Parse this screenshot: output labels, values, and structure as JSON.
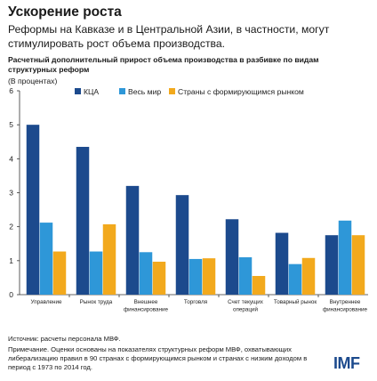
{
  "header": {
    "title": "Ускорение роста",
    "subtitle": "Реформы на Кавказе и в Центральной Азии, в частности, могут стимулировать рост объема производства."
  },
  "chart_data": {
    "type": "bar",
    "title": "Расчетный дополнительный прирост объема производства в разбивке по видам структурных реформ",
    "unit": "(В процентах)",
    "xlabel": "",
    "ylabel": "",
    "ylim": [
      0,
      6
    ],
    "yticks": [
      0,
      1,
      2,
      3,
      4,
      5,
      6
    ],
    "grid": false,
    "legend_position": "top",
    "categories": [
      [
        "Управление"
      ],
      [
        "Рынок труда"
      ],
      [
        "Внешнее",
        "финансирование"
      ],
      [
        "Торговля"
      ],
      [
        "Счет текущих",
        "операций"
      ],
      [
        "Товарный рынок"
      ],
      [
        "Внутреннее",
        "финансирование"
      ]
    ],
    "series": [
      {
        "name": "КЦА",
        "color": "#1c4a8d",
        "values": [
          5.0,
          4.35,
          3.2,
          2.93,
          2.22,
          1.82,
          1.75
        ]
      },
      {
        "name": "Весь мир",
        "color": "#2e97d8",
        "values": [
          2.12,
          1.27,
          1.25,
          1.05,
          1.1,
          0.9,
          2.18
        ]
      },
      {
        "name": "Страны с формирующимся рынком",
        "color": "#f2a91d",
        "values": [
          1.27,
          2.07,
          0.97,
          1.07,
          0.55,
          1.08,
          1.75
        ]
      }
    ]
  },
  "footer": {
    "source": "Источник: расчеты персонала МВФ.",
    "note": "Примечание. Оценки основаны на показателях структурных реформ МВФ, охватывающих либерализацию правил в 90 странах с формирующимся рынком и странах с низким доходом в период с 1973 по 2014 год.",
    "logo": "IMF",
    "logo_color": "#1c4a8d"
  }
}
